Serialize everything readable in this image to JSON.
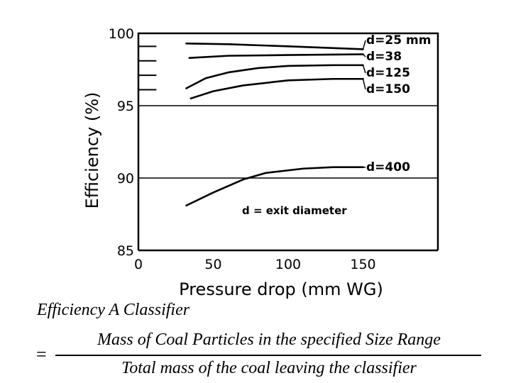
{
  "chart_data": {
    "type": "line",
    "title": "",
    "xlabel": "Pressure drop (mm WG)",
    "ylabel": "Efficiency (%)",
    "xlim": [
      0,
      200
    ],
    "ylim": [
      85,
      100
    ],
    "x_ticks": [
      0,
      50,
      100,
      150
    ],
    "y_ticks": [
      85,
      90,
      95,
      100
    ],
    "grid": "horizontal",
    "series": [
      {
        "name": "d=25 mm",
        "points": [
          [
            32,
            99.3
          ],
          [
            60,
            99.25
          ],
          [
            100,
            99.1
          ],
          [
            150,
            98.9
          ]
        ]
      },
      {
        "name": "d=38",
        "points": [
          [
            34,
            98.3
          ],
          [
            60,
            98.45
          ],
          [
            100,
            98.5
          ],
          [
            150,
            98.55
          ]
        ]
      },
      {
        "name": "d=125",
        "points": [
          [
            32,
            96.2
          ],
          [
            45,
            96.9
          ],
          [
            60,
            97.3
          ],
          [
            80,
            97.6
          ],
          [
            100,
            97.75
          ],
          [
            130,
            97.8
          ],
          [
            150,
            97.8
          ]
        ]
      },
      {
        "name": "d=150",
        "points": [
          [
            35,
            95.5
          ],
          [
            50,
            96.0
          ],
          [
            70,
            96.4
          ],
          [
            100,
            96.75
          ],
          [
            130,
            96.85
          ],
          [
            150,
            96.85
          ]
        ]
      },
      {
        "name": "d=400",
        "points": [
          [
            32,
            88.1
          ],
          [
            50,
            89.0
          ],
          [
            70,
            89.9
          ],
          [
            85,
            90.35
          ],
          [
            110,
            90.65
          ],
          [
            130,
            90.75
          ],
          [
            150,
            90.75
          ]
        ]
      }
    ],
    "left_stubs": [
      {
        "y": 99.1,
        "x_end": 12
      },
      {
        "y": 98.1,
        "x_end": 12
      },
      {
        "y": 97.1,
        "x_end": 12
      },
      {
        "y": 96.1,
        "x_end": 12
      }
    ],
    "annotation": "d = exit diameter"
  },
  "formula": {
    "title": "Efficiency A Classifier",
    "equals": "=",
    "numerator": "Mass of  Coal  Particles in the specified  Size Range",
    "denominator": "Total  mass of  the coal leaving the classifier"
  }
}
